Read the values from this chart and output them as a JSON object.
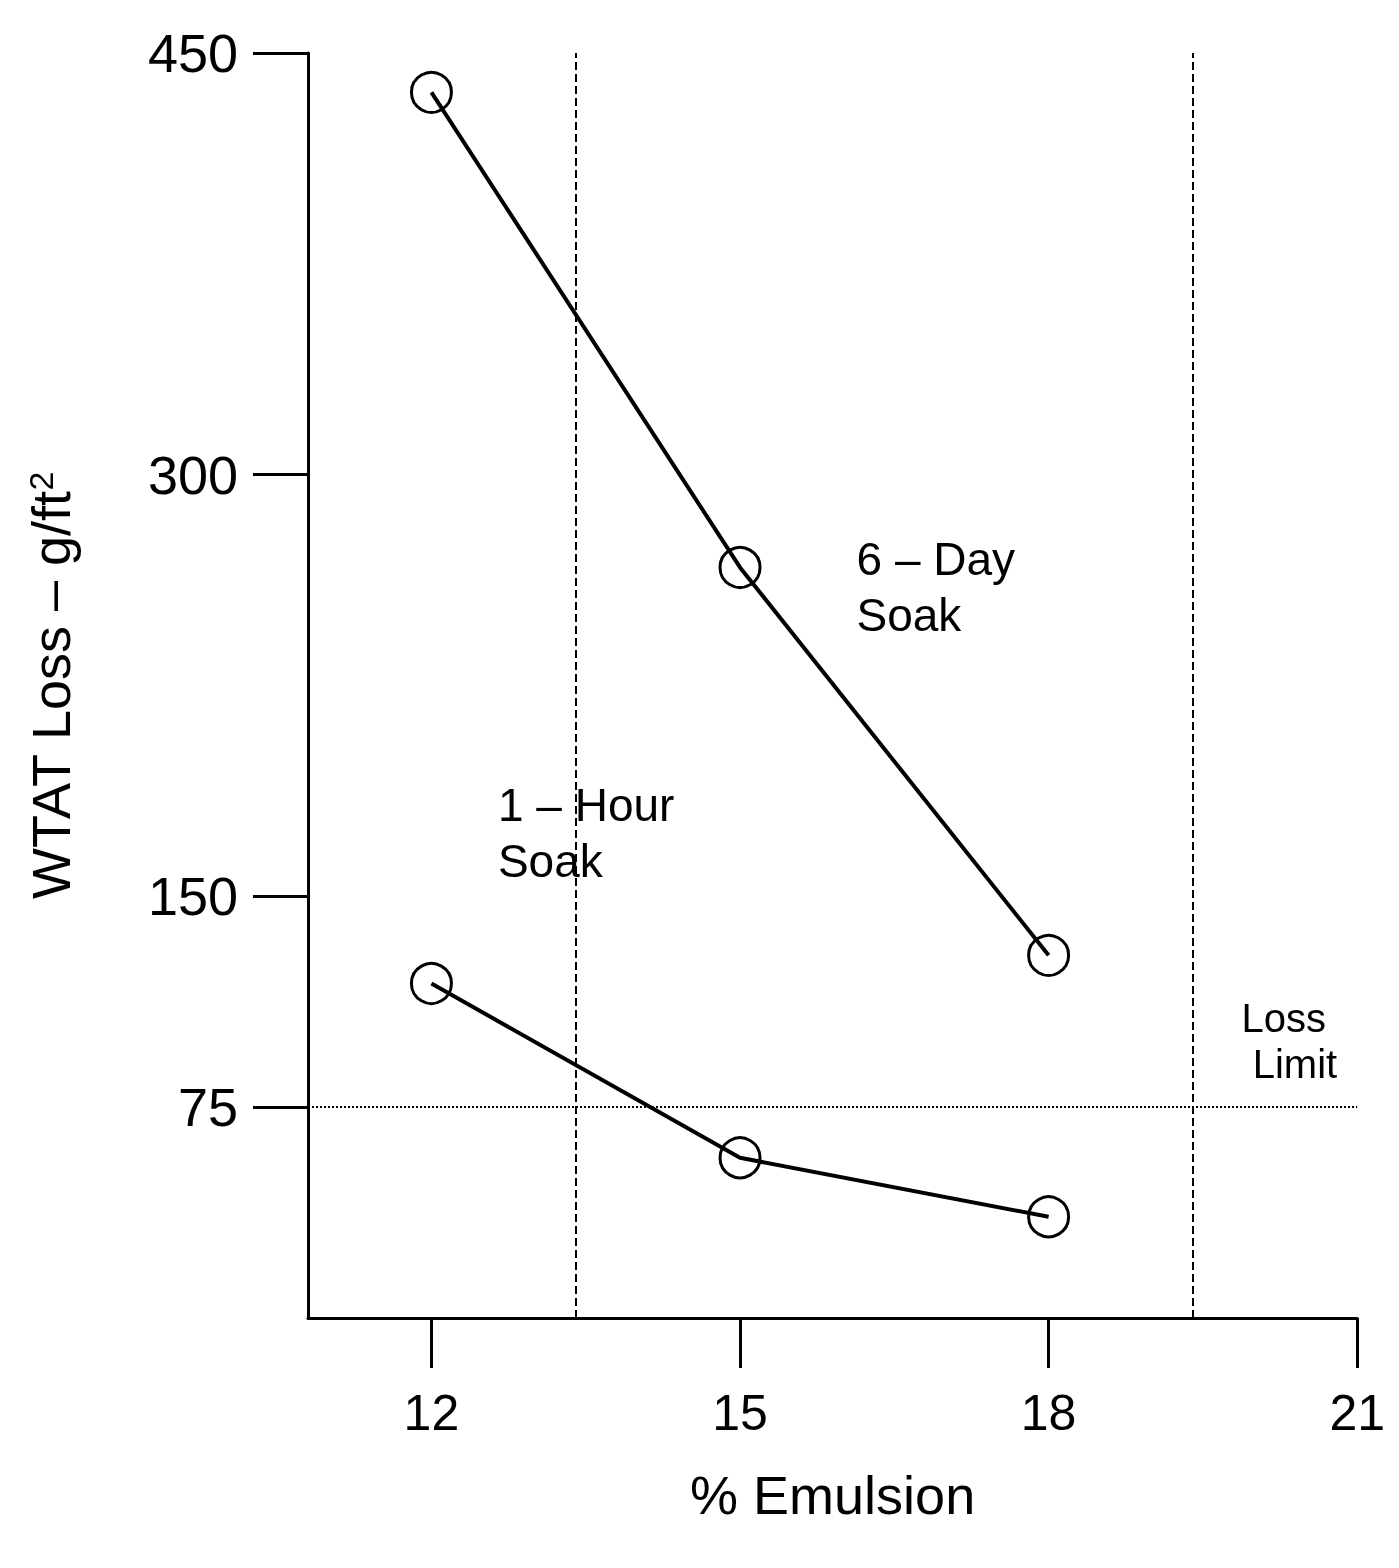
{
  "chart_data": {
    "type": "line",
    "xlabel": "% Emulsion",
    "ylabel": "WTAT Loss – g/ft$^{2}$",
    "x": [
      12,
      15,
      18
    ],
    "series": [
      {
        "name": "6 – Day Soak",
        "color": "#000000",
        "values": [
          436,
          267,
          129
        ]
      },
      {
        "name": "1 – Hour Soak",
        "color": "#000000",
        "values": [
          119,
          57,
          36
        ]
      }
    ],
    "xlim": [
      10.8,
      21
    ],
    "xticks": [
      12,
      15,
      18,
      21
    ],
    "ylim": [
      0,
      450
    ],
    "yticks": [
      75,
      150,
      300,
      450
    ],
    "ref_lines": [
      {
        "axis": "y",
        "value": 75,
        "label": "Loss Limit",
        "line_style": "dotted"
      },
      {
        "axis": "x",
        "value": 13.4,
        "line_style": "dashed"
      },
      {
        "axis": "x",
        "value": 19.4,
        "line_style": "dashed"
      }
    ],
    "marker": "circle",
    "line_style": "solid",
    "grid": false,
    "legend": false
  }
}
